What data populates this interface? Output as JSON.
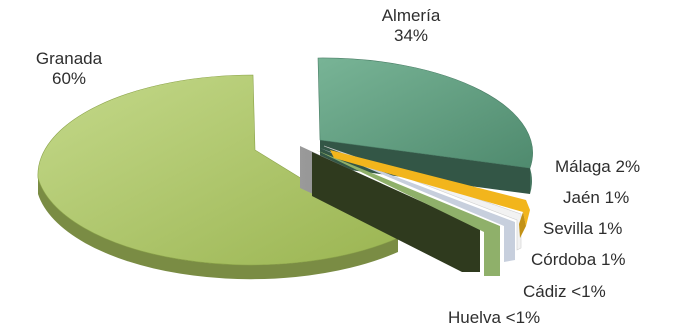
{
  "chart_data": {
    "type": "pie",
    "style": "3d-exploded",
    "slices": [
      {
        "label": "Granada",
        "value_text": "60%",
        "value": 60,
        "color": "#a9c25f"
      },
      {
        "label": "Almería",
        "value_text": "34%",
        "value": 34,
        "color": "#5c9c7f"
      },
      {
        "label": "Málaga",
        "value_text": "2%",
        "value": 2,
        "color": "#f2b51c"
      },
      {
        "label": "Jaén",
        "value_text": "1%",
        "value": 1,
        "color": "#f2f2f2"
      },
      {
        "label": "Sevilla",
        "value_text": "1%",
        "value": 1,
        "color": "#c7cfdd"
      },
      {
        "label": "Córdoba",
        "value_text": "1%",
        "value": 1,
        "color": "#2f3a1e"
      },
      {
        "label": "Cádiz",
        "value_text": "<1%",
        "value": 0.5,
        "color": "#8fb06a"
      },
      {
        "label": "Huelva",
        "value_text": "<1%",
        "value": 0.5,
        "color": "#808080"
      }
    ]
  }
}
